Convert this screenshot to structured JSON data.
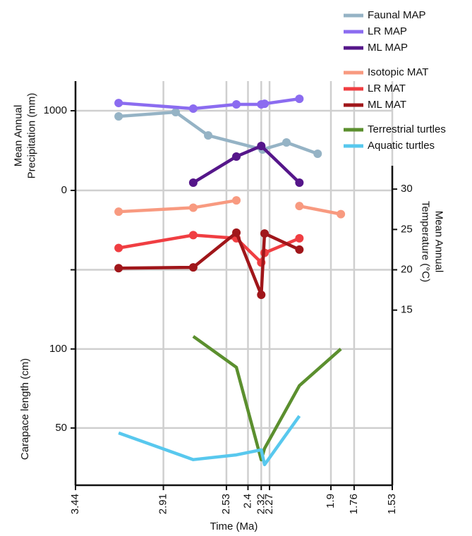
{
  "chart_data": [
    {
      "type": "line",
      "markers": true,
      "y_label": [
        "Mean Annual",
        "Precipitation (mm)"
      ],
      "y_axis_side": "left",
      "xlim": [
        3.44,
        1.53
      ],
      "ylim": [
        0,
        1372
      ],
      "yticks": [
        0,
        1000
      ],
      "grid": true,
      "series": [
        {
          "name": "Faunal MAP",
          "color": "#95b3c5",
          "x": [
            3.18,
            2.836,
            2.64,
            2.312,
            2.168,
            1.98
          ],
          "values": [
            929,
            982,
            690,
            513,
            602,
            460
          ]
        },
        {
          "name": "LR MAP",
          "color": "#8b6cf0",
          "x": [
            3.18,
            2.73,
            2.47,
            2.32,
            2.3,
            2.09
          ],
          "values": [
            1097,
            1027,
            1080,
            1080,
            1088,
            1150
          ]
        },
        {
          "name": "ML MAP",
          "color": "#55168a",
          "x": [
            2.73,
            2.47,
            2.32,
            2.09
          ],
          "values": [
            97,
            425,
            558,
            97
          ]
        }
      ]
    },
    {
      "type": "line",
      "markers": true,
      "y_label": [
        "Mean Annual",
        "Temperature (°C)"
      ],
      "y_axis_side": "right",
      "xlim": [
        3.44,
        1.53
      ],
      "ylim": [
        14.1,
        32.9
      ],
      "yticks": [
        15,
        20,
        25,
        30
      ],
      "grid_yticks": [
        20
      ],
      "series": [
        {
          "name": "Isotopic MAT",
          "color": "#f89a80",
          "x": [
            3.18,
            2.73,
            2.47,
            2.3,
            2.09,
            1.84
          ],
          "values": [
            27.2,
            27.7,
            28.6,
            null,
            27.9,
            26.9
          ]
        },
        {
          "name": "LR MAT",
          "color": "#f03e42",
          "x": [
            3.18,
            2.73,
            2.47,
            2.32,
            2.3,
            2.09
          ],
          "values": [
            22.7,
            24.3,
            23.9,
            20.9,
            22.1,
            23.9
          ]
        },
        {
          "name": "ML MAT",
          "color": "#a0161a",
          "x": [
            3.18,
            2.73,
            2.47,
            2.32,
            2.3,
            2.09
          ],
          "values": [
            20.2,
            20.3,
            24.6,
            16.9,
            24.5,
            22.5
          ]
        }
      ]
    },
    {
      "type": "line",
      "markers": false,
      "y_label": [
        "Carapace length (cm)"
      ],
      "y_axis_side": "left",
      "x_label": "Time (Ma)",
      "xlim": [
        3.44,
        1.53
      ],
      "xticks": [
        3.44,
        2.91,
        2.53,
        2.4,
        2.32,
        2.27,
        1.9,
        1.76,
        1.53
      ],
      "ylim": [
        13.8,
        120
      ],
      "yticks": [
        50,
        100
      ],
      "grid": true,
      "series": [
        {
          "name": "Terrestrial turtles",
          "color": "#5b8f2e",
          "x": [
            2.73,
            2.47,
            2.32,
            2.3,
            2.09,
            1.84
          ],
          "values": [
            108,
            88.4,
            29.9,
            37.1,
            76.8,
            100
          ]
        },
        {
          "name": "Aquatic turtles",
          "color": "#58c8ee",
          "x": [
            3.18,
            2.73,
            2.47,
            2.32,
            2.3,
            2.09
          ],
          "values": [
            46.9,
            30,
            33,
            36.2,
            26.8,
            57.6
          ]
        }
      ]
    }
  ]
}
